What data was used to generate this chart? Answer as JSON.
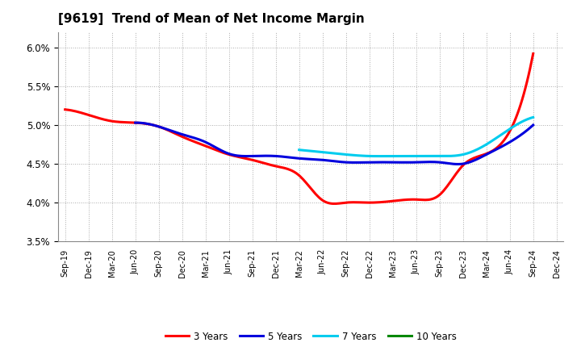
{
  "title": "[9619]  Trend of Mean of Net Income Margin",
  "title_fontsize": 11,
  "background_color": "#ffffff",
  "plot_bg_color": "#ffffff",
  "grid_color": "#aaaaaa",
  "ylim": [
    0.035,
    0.062
  ],
  "yticks": [
    0.035,
    0.04,
    0.045,
    0.05,
    0.055,
    0.06
  ],
  "x_labels": [
    "Sep-19",
    "Dec-19",
    "Mar-20",
    "Jun-20",
    "Sep-20",
    "Dec-20",
    "Mar-21",
    "Jun-21",
    "Sep-21",
    "Dec-21",
    "Mar-22",
    "Jun-22",
    "Sep-22",
    "Dec-22",
    "Mar-23",
    "Jun-23",
    "Sep-23",
    "Dec-23",
    "Mar-24",
    "Jun-24",
    "Sep-24",
    "Dec-24"
  ],
  "series": {
    "3 Years": {
      "color": "#ff0000",
      "values": [
        0.052,
        0.0513,
        0.0505,
        0.0503,
        0.0498,
        0.0485,
        0.0473,
        0.0462,
        0.0455,
        0.0447,
        0.0435,
        0.0403,
        0.04,
        0.04,
        0.0402,
        0.0404,
        0.041,
        0.0448,
        0.0463,
        0.0492,
        0.0592,
        null
      ]
    },
    "5 Years": {
      "color": "#0000dd",
      "values": [
        null,
        null,
        null,
        0.0503,
        0.0498,
        0.0488,
        0.0478,
        0.0463,
        0.046,
        0.046,
        0.0457,
        0.0455,
        0.0452,
        0.0452,
        0.0452,
        0.0452,
        0.0452,
        0.045,
        0.0462,
        0.0478,
        0.05,
        null
      ]
    },
    "7 Years": {
      "color": "#00ccee",
      "values": [
        null,
        null,
        null,
        null,
        null,
        null,
        null,
        null,
        null,
        null,
        0.0468,
        0.0465,
        0.0462,
        0.046,
        0.046,
        0.046,
        0.046,
        0.0462,
        0.0475,
        0.0495,
        0.051,
        null
      ]
    },
    "10 Years": {
      "color": "#008800",
      "values": [
        null,
        null,
        null,
        null,
        null,
        null,
        null,
        null,
        null,
        null,
        null,
        null,
        null,
        null,
        null,
        null,
        null,
        null,
        null,
        null,
        null,
        null
      ]
    }
  },
  "legend_labels": [
    "3 Years",
    "5 Years",
    "7 Years",
    "10 Years"
  ],
  "legend_colors": [
    "#ff0000",
    "#0000dd",
    "#00ccee",
    "#008800"
  ]
}
